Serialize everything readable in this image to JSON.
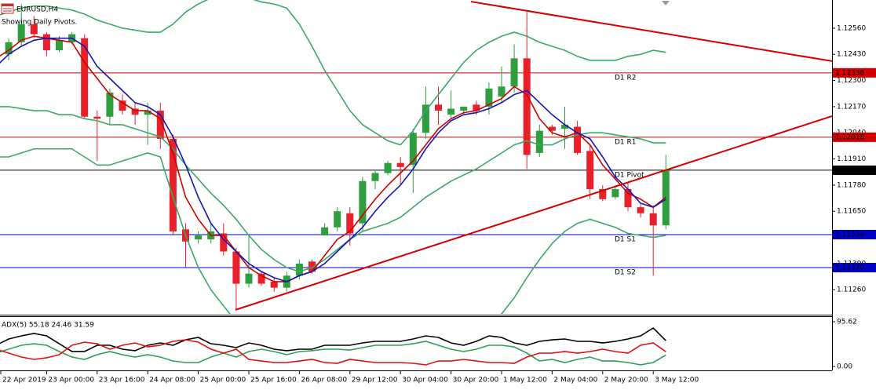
{
  "chart_data": [
    {
      "type": "candlestick",
      "title": "EURUSD,H4",
      "subtitle": "Showing Daily Pivots.",
      "categories": [
        "22 Apr 2019",
        null,
        null,
        null,
        "23 Apr 00:00",
        null,
        null,
        null,
        "23 Apr 16:00",
        null,
        null,
        null,
        "24 Apr 08:00",
        null,
        null,
        null,
        "25 Apr 00:00",
        null,
        null,
        null,
        "25 Apr 16:00",
        null,
        null,
        null,
        "26 Apr 08:00",
        null,
        null,
        null,
        "29 Apr 12:00",
        null,
        null,
        null,
        "30 Apr 04:00",
        null,
        null,
        null,
        "30 Apr 20:00",
        null,
        null,
        null,
        "1 May 12:00",
        null,
        null,
        null,
        "2 May 04:00",
        null,
        null,
        null,
        "2 May 20:00",
        null,
        null,
        null,
        "3 May 12:00",
        null
      ],
      "open": [
        1.1239,
        1.1243,
        1.1249,
        1.1258,
        1.1253,
        1.1245,
        1.1249,
        1.1251,
        1.1212,
        1.1212,
        1.122,
        1.1216,
        1.1213,
        1.1215,
        1.1201,
        1.1156,
        1.1151,
        1.1151,
        1.1154,
        1.1145,
        1.1129,
        1.1134,
        1.113,
        1.1127,
        1.1133,
        1.114,
        1.1153,
        1.1157,
        1.1164,
        1.1159,
        1.118,
        1.1184,
        1.1189,
        1.1188,
        1.1204,
        1.1218,
        1.1213,
        1.1215,
        1.1218,
        1.1217,
        1.1222,
        1.1227,
        1.1241,
        1.1194,
        1.1207,
        1.1206,
        1.1207,
        1.1195,
        1.1176,
        1.1172,
        1.1176,
        1.1167,
        1.1164,
        1.1158
      ],
      "high": [
        1.1248,
        1.1251,
        1.1268,
        1.1262,
        1.1254,
        1.1252,
        1.1254,
        1.1253,
        1.1215,
        1.1226,
        1.1223,
        1.1219,
        1.1219,
        1.1219,
        1.1203,
        1.1159,
        1.1155,
        1.1159,
        1.1159,
        1.1147,
        1.1153,
        1.1135,
        1.1132,
        1.1135,
        1.1141,
        1.1141,
        1.1159,
        1.1167,
        1.1167,
        1.1182,
        1.1185,
        1.119,
        1.1192,
        1.1206,
        1.1227,
        1.1227,
        1.1225,
        1.1217,
        1.122,
        1.1229,
        1.1237,
        1.1248,
        1.1264,
        1.1208,
        1.1208,
        1.1217,
        1.121,
        1.1198,
        1.1178,
        1.1178,
        1.1179,
        1.1169,
        1.1168,
        1.1193
      ],
      "low": [
        1.1237,
        1.124,
        1.1247,
        1.1251,
        1.1242,
        1.1244,
        1.1248,
        1.1211,
        1.119,
        1.1208,
        1.1213,
        1.1208,
        1.1198,
        1.1196,
        1.1153,
        1.1137,
        1.1149,
        1.1149,
        1.1143,
        1.1116,
        1.1127,
        1.1128,
        1.1125,
        1.1125,
        1.1131,
        1.1134,
        1.1153,
        1.1155,
        1.1148,
        1.1155,
        1.1176,
        1.1183,
        1.1178,
        1.1174,
        1.1201,
        1.1208,
        1.1211,
        1.1213,
        1.1213,
        1.1213,
        1.1219,
        1.1224,
        1.1186,
        1.1192,
        1.1203,
        1.1196,
        1.1193,
        1.1171,
        1.117,
        1.1171,
        1.1165,
        1.1162,
        1.1133,
        1.1156
      ],
      "close": [
        1.1247,
        1.1249,
        1.1258,
        1.1253,
        1.1245,
        1.125,
        1.1253,
        1.1212,
        1.1211,
        1.1224,
        1.1215,
        1.1213,
        1.1215,
        1.1201,
        1.1155,
        1.115,
        1.1153,
        1.1155,
        1.1145,
        1.1129,
        1.1134,
        1.1129,
        1.1127,
        1.1133,
        1.1139,
        1.1135,
        1.1157,
        1.1165,
        1.1154,
        1.118,
        1.1184,
        1.1189,
        1.1187,
        1.1204,
        1.1218,
        1.1215,
        1.1216,
        1.1217,
        1.1215,
        1.1226,
        1.1227,
        1.1241,
        1.1193,
        1.1205,
        1.1205,
        1.1208,
        1.1194,
        1.1176,
        1.1171,
        1.1176,
        1.1167,
        1.1164,
        1.1158,
        1.11854
      ],
      "up_color": "#2f9e3f",
      "down_color": "#e8202a",
      "ylim": [
        1.1114,
        1.127
      ],
      "yticks": [
        {
          "value": 1.1256,
          "label": "1.12560"
        },
        {
          "value": 1.1243,
          "label": "1.12430"
        },
        {
          "value": 1.123,
          "label": "1.12300"
        },
        {
          "value": 1.1217,
          "label": "1.12170"
        },
        {
          "value": 1.1204,
          "label": "1.12040"
        },
        {
          "value": 1.1191,
          "label": "1.11910"
        },
        {
          "value": 1.1178,
          "label": "1.11780"
        },
        {
          "value": 1.1165,
          "label": "1.11650"
        },
        {
          "value": 1.1139,
          "label": "1.11390"
        },
        {
          "value": 1.1126,
          "label": "1.11260"
        }
      ],
      "grid": false,
      "overlays": [
        {
          "color": "#3aa868",
          "values": [
            1.1262,
            1.1264,
            1.1266,
            1.1267,
            1.1267,
            1.1266,
            1.1265,
            1.1263,
            1.126,
            1.1258,
            1.1256,
            1.1255,
            1.1254,
            1.1254,
            1.1258,
            1.1264,
            1.1268,
            1.1271,
            1.1272,
            1.1272,
            1.1271,
            1.1269,
            1.1268,
            1.1266,
            1.1258,
            1.1247,
            1.1235,
            1.1225,
            1.1215,
            1.1208,
            1.1204,
            1.12,
            1.1198,
            1.1205,
            1.1215,
            1.1223,
            1.1231,
            1.1239,
            1.1245,
            1.1249,
            1.1252,
            1.1254,
            1.1252,
            1.1249,
            1.1247,
            1.1245,
            1.1242,
            1.124,
            1.124,
            1.124,
            1.1242,
            1.1243,
            1.1245,
            1.1244
          ]
        },
        {
          "color": "#3aa868",
          "values": [
            1.1217,
            1.1217,
            1.1216,
            1.1215,
            1.1215,
            1.1213,
            1.1213,
            1.1211,
            1.121,
            1.1208,
            1.1208,
            1.1206,
            1.1204,
            1.1202,
            1.1196,
            1.1188,
            1.1181,
            1.1174,
            1.1168,
            1.1161,
            1.1153,
            1.1146,
            1.1141,
            1.1137,
            1.1135,
            1.1137,
            1.1141,
            1.1146,
            1.1151,
            1.1155,
            1.1157,
            1.1159,
            1.1162,
            1.1167,
            1.1172,
            1.1176,
            1.118,
            1.1183,
            1.1186,
            1.119,
            1.1194,
            1.1198,
            1.12,
            1.1198,
            1.1198,
            1.1201,
            1.1203,
            1.1204,
            1.1204,
            1.1203,
            1.1202,
            1.1201,
            1.1199,
            1.1199
          ]
        },
        {
          "color": "#3aa868",
          "values": [
            1.1192,
            1.1192,
            1.1194,
            1.1196,
            1.1196,
            1.1196,
            1.1196,
            1.1192,
            1.1188,
            1.1188,
            1.119,
            1.1192,
            1.1194,
            1.1192,
            1.1172,
            1.1153,
            1.1137,
            1.1126,
            1.1118,
            1.111,
            1.1106,
            1.1102,
            1.1098,
            1.1094,
            1.1093,
            1.1093,
            1.1094,
            1.1096,
            1.1098,
            1.11,
            1.1102,
            1.1104,
            1.1106,
            1.1106,
            1.1106,
            1.1106,
            1.1106,
            1.1106,
            1.1108,
            1.111,
            1.1114,
            1.1122,
            1.1132,
            1.1141,
            1.1149,
            1.1155,
            1.1159,
            1.1161,
            1.1159,
            1.1157,
            1.1154,
            1.1153,
            1.1152,
            1.1153
          ]
        },
        {
          "color": "#d00000",
          "values": [
            1.1241,
            1.1245,
            1.125,
            1.1252,
            1.1251,
            1.125,
            1.1249,
            1.1239,
            1.1231,
            1.1223,
            1.1219,
            1.1215,
            1.1215,
            1.1211,
            1.1194,
            1.1172,
            1.1161,
            1.1153,
            1.1153,
            1.1145,
            1.1137,
            1.1133,
            1.113,
            1.113,
            1.1133,
            1.1135,
            1.1143,
            1.1151,
            1.1155,
            1.1163,
            1.1171,
            1.1178,
            1.1184,
            1.119,
            1.1198,
            1.1206,
            1.1211,
            1.1214,
            1.1215,
            1.1218,
            1.1221,
            1.1227,
            1.1223,
            1.1211,
            1.1204,
            1.1202,
            1.1204,
            1.1198,
            1.1188,
            1.1181,
            1.1174,
            1.1171,
            1.1167,
            1.1172
          ]
        },
        {
          "color": "#1414b4",
          "values": [
            1.1237,
            1.1243,
            1.1247,
            1.125,
            1.1251,
            1.1251,
            1.1251,
            1.1247,
            1.1237,
            1.1231,
            1.1225,
            1.1219,
            1.1217,
            1.1213,
            1.1202,
            1.1188,
            1.1172,
            1.1159,
            1.1151,
            1.1145,
            1.1139,
            1.1135,
            1.1132,
            1.113,
            1.1133,
            1.1135,
            1.1139,
            1.1145,
            1.1151,
            1.1157,
            1.1165,
            1.1172,
            1.1178,
            1.1186,
            1.1196,
            1.1204,
            1.121,
            1.1213,
            1.1214,
            1.1216,
            1.1219,
            1.1223,
            1.1225,
            1.1219,
            1.1213,
            1.1208,
            1.1204,
            1.1201,
            1.1192,
            1.1182,
            1.1176,
            1.1169,
            1.1167,
            1.1171
          ]
        }
      ],
      "pivots": [
        {
          "label": "D1 R2",
          "value": 1.12338,
          "color": "#d40000"
        },
        {
          "label": "D1 R1",
          "value": 1.12018,
          "color": "#d40000"
        },
        {
          "label": "D1 Pivot",
          "value": 1.11854,
          "color": "#000000"
        },
        {
          "label": "D1 S1",
          "value": 1.11534,
          "color": "#0000c8"
        },
        {
          "label": "D1 S2",
          "value": 1.1137,
          "value_label": "1.11370",
          "color": "#0000c8"
        }
      ],
      "trendlines": [
        {
          "color": "#d40000",
          "x": [
            37.58,
            66.15
          ],
          "y": [
            1.12692,
            1.12396
          ]
        },
        {
          "color": "#d40000",
          "x": [
            18.94,
            66.15
          ],
          "y": [
            1.1116,
            1.12123
          ]
        }
      ]
    },
    {
      "type": "line",
      "title": "ADX(5) 55.18 24.46 31.59",
      "ylim": [
        0,
        95.62
      ],
      "yticks": [
        95.62,
        {
          "value": 0,
          "label": "0.00"
        }
      ],
      "series": [
        {
          "color": "#000000",
          "values": [
            45.3,
            58.7,
            65.4,
            70.5,
            65.4,
            48.6,
            31.9,
            31.9,
            45.3,
            45.3,
            36.9,
            33.6,
            45.3,
            50.3,
            45.3,
            57.0,
            62.1,
            48.6,
            45.3,
            40.3,
            50.3,
            45.3,
            36.9,
            33.6,
            36.9,
            36.9,
            45.3,
            45.3,
            45.3,
            50.3,
            53.7,
            53.7,
            53.7,
            58.7,
            65.4,
            62.1,
            50.3,
            45.3,
            53.7,
            65.4,
            62.1,
            50.3,
            45.3,
            53.7,
            57.0,
            58.7,
            53.7,
            53.7,
            50.3,
            53.7,
            58.7,
            65.4,
            82.2,
            55.18
          ]
        },
        {
          "color": "#2f9e5a",
          "values": [
            28.5,
            36.9,
            45.3,
            48.6,
            45.3,
            31.9,
            20.1,
            15.1,
            25.2,
            31.9,
            25.2,
            20.1,
            25.2,
            20.1,
            11.7,
            8.4,
            8.4,
            20.1,
            28.5,
            20.1,
            31.9,
            36.9,
            31.9,
            25.2,
            31.9,
            33.6,
            36.9,
            36.9,
            35.2,
            40.3,
            45.3,
            45.3,
            45.3,
            48.6,
            53.7,
            45.3,
            36.9,
            31.9,
            36.9,
            45.3,
            45.3,
            41.9,
            28.5,
            11.7,
            15.1,
            8.4,
            15.1,
            20.1,
            11.7,
            11.7,
            8.4,
            3.4,
            8.4,
            24.46
          ]
        },
        {
          "color": "#e01010",
          "values": [
            36.9,
            28.5,
            20.1,
            15.1,
            18.5,
            25.2,
            45.3,
            52.0,
            48.6,
            36.9,
            45.3,
            50.3,
            41.9,
            45.3,
            53.7,
            57.0,
            52.0,
            36.9,
            28.5,
            36.9,
            15.1,
            11.7,
            8.4,
            8.4,
            11.7,
            15.1,
            8.4,
            6.7,
            15.1,
            11.7,
            8.4,
            8.4,
            8.4,
            6.7,
            3.4,
            11.7,
            11.7,
            15.1,
            11.7,
            8.4,
            8.4,
            6.7,
            20.1,
            28.5,
            28.5,
            31.9,
            28.5,
            31.9,
            36.9,
            31.9,
            28.5,
            45.3,
            50.3,
            31.59
          ]
        }
      ]
    }
  ]
}
